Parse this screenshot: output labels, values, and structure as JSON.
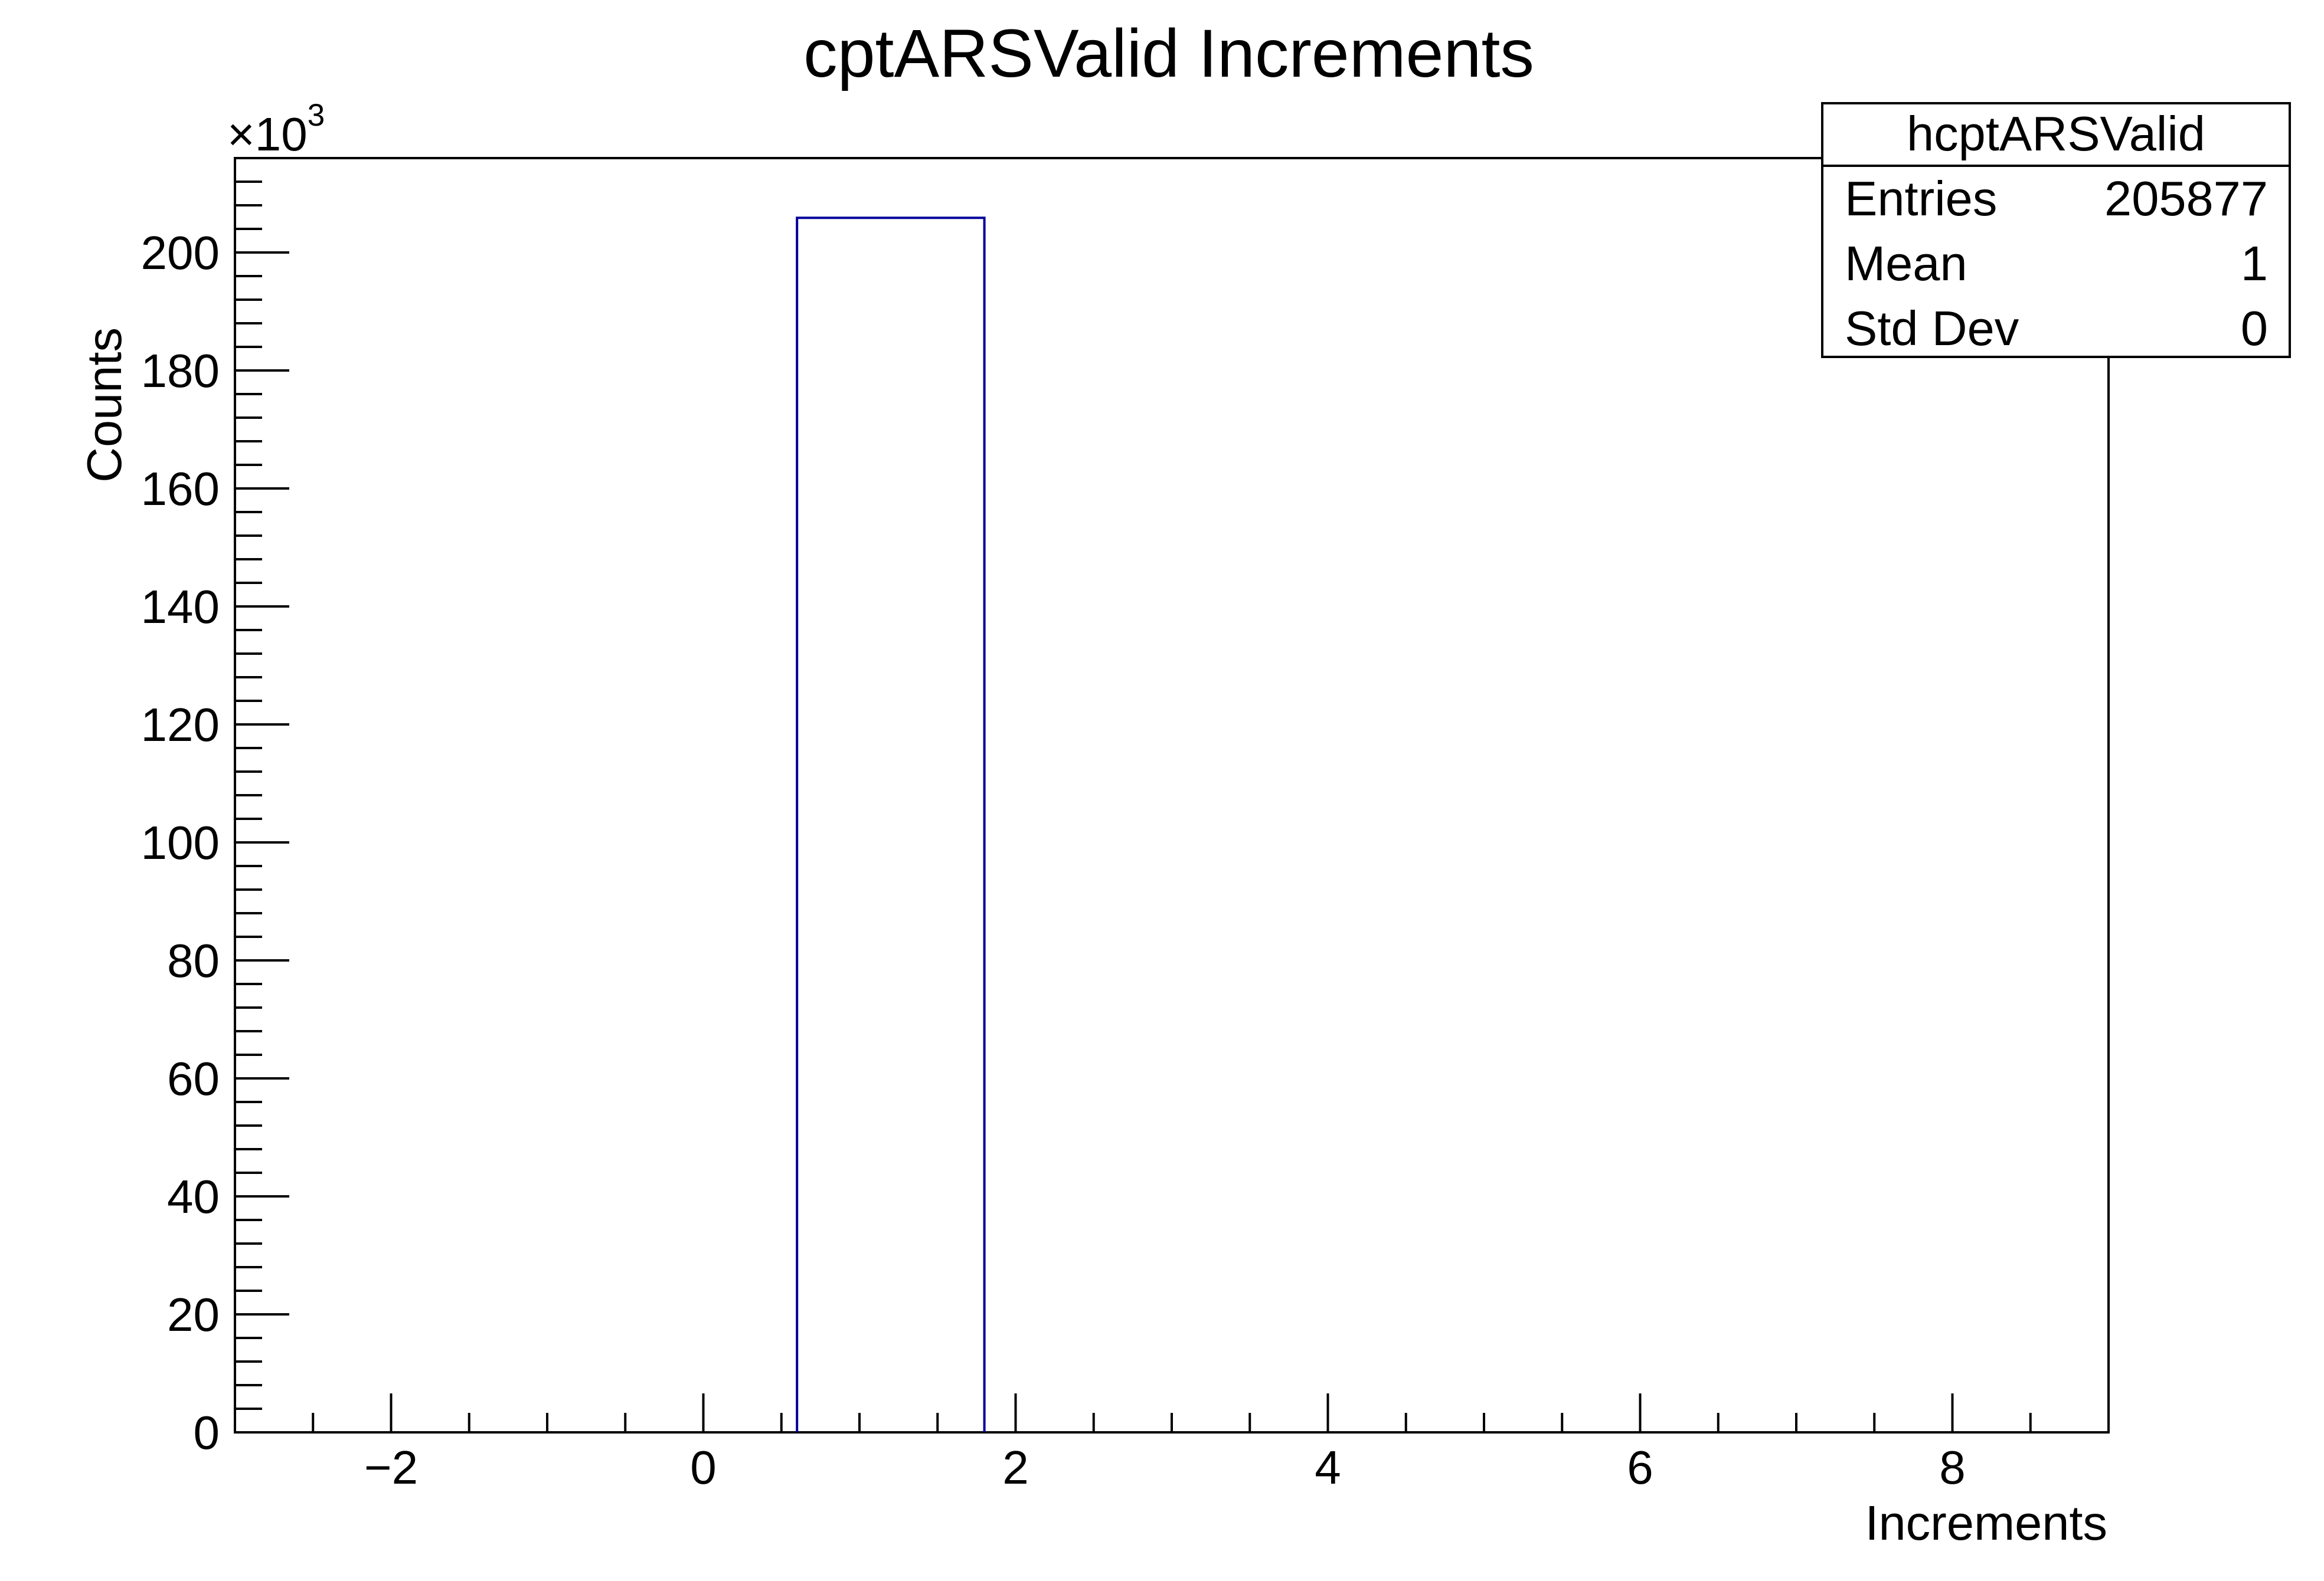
{
  "chart_data": {
    "type": "bar",
    "title": "cptARSValid Increments",
    "xlabel": "Increments",
    "ylabel": "Counts",
    "y_multiplier": {
      "base": "×10",
      "exponent": "3"
    },
    "xlim": [
      -3,
      9
    ],
    "ylim": [
      0,
      216
    ],
    "x_ticks": [
      {
        "value": -2,
        "label": "−2"
      },
      {
        "value": 0,
        "label": "0"
      },
      {
        "value": 2,
        "label": "2"
      },
      {
        "value": 4,
        "label": "4"
      },
      {
        "value": 6,
        "label": "6"
      },
      {
        "value": 8,
        "label": "8"
      }
    ],
    "y_ticks": [
      0,
      20,
      40,
      60,
      80,
      100,
      120,
      140,
      160,
      180,
      200
    ],
    "bins": [
      {
        "x_low": 0.6,
        "x_high": 1.8,
        "value": 205.877
      }
    ],
    "grid": false,
    "line_color": "#000099",
    "stats_box": {
      "title": "hcptARSValid",
      "position": "top-right",
      "rows": [
        {
          "label": "Entries",
          "value": "205877"
        },
        {
          "label": "Mean",
          "value": "1"
        },
        {
          "label": "Std Dev",
          "value": "0"
        }
      ]
    }
  }
}
